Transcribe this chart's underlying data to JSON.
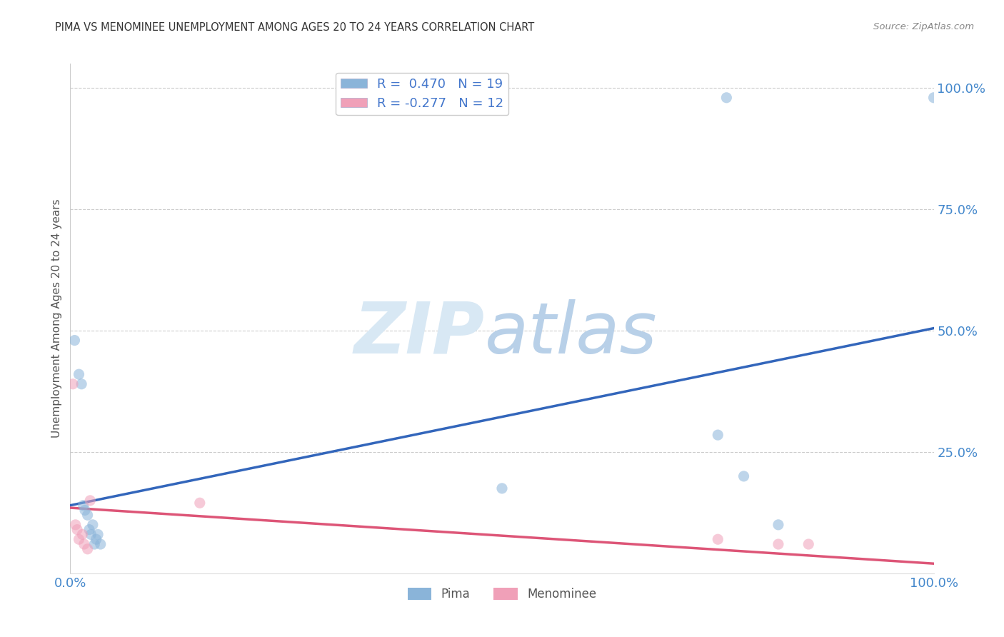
{
  "title": "PIMA VS MENOMINEE UNEMPLOYMENT AMONG AGES 20 TO 24 YEARS CORRELATION CHART",
  "source": "Source: ZipAtlas.com",
  "ylabel_label": "Unemployment Among Ages 20 to 24 years",
  "pima_color": "#8ab4d9",
  "menominee_color": "#f0a0b8",
  "pima_line_color": "#3366bb",
  "menominee_line_color": "#dd5577",
  "pima_R": 0.47,
  "pima_N": 19,
  "menominee_R": -0.277,
  "menominee_N": 12,
  "pima_points_x": [
    0.005,
    0.01,
    0.013,
    0.015,
    0.017,
    0.02,
    0.022,
    0.024,
    0.026,
    0.028,
    0.03,
    0.032,
    0.035,
    0.5,
    0.75,
    0.78,
    0.82,
    0.76,
    1.0
  ],
  "pima_points_y": [
    0.48,
    0.41,
    0.39,
    0.14,
    0.13,
    0.12,
    0.09,
    0.08,
    0.1,
    0.06,
    0.07,
    0.08,
    0.06,
    0.175,
    0.285,
    0.2,
    0.1,
    0.98,
    0.98
  ],
  "menominee_points_x": [
    0.003,
    0.006,
    0.008,
    0.01,
    0.014,
    0.016,
    0.02,
    0.023,
    0.15,
    0.75,
    0.82,
    0.855
  ],
  "menominee_points_y": [
    0.39,
    0.1,
    0.09,
    0.07,
    0.08,
    0.06,
    0.05,
    0.15,
    0.145,
    0.07,
    0.06,
    0.06
  ],
  "pima_line_x0": 0.0,
  "pima_line_y0": 0.14,
  "pima_line_x1": 1.0,
  "pima_line_y1": 0.505,
  "men_line_x0": 0.0,
  "men_line_y0": 0.135,
  "men_line_x1": 1.0,
  "men_line_y1": 0.02,
  "background_color": "#ffffff",
  "grid_color": "#cccccc",
  "marker_size": 120,
  "marker_alpha": 0.55,
  "ytick_values": [
    0.25,
    0.5,
    0.75,
    1.0
  ],
  "ytick_labels": [
    "25.0%",
    "50.0%",
    "75.0%",
    "100.0%"
  ],
  "xlim": [
    0.0,
    1.0
  ],
  "ylim": [
    0.0,
    1.05
  ]
}
